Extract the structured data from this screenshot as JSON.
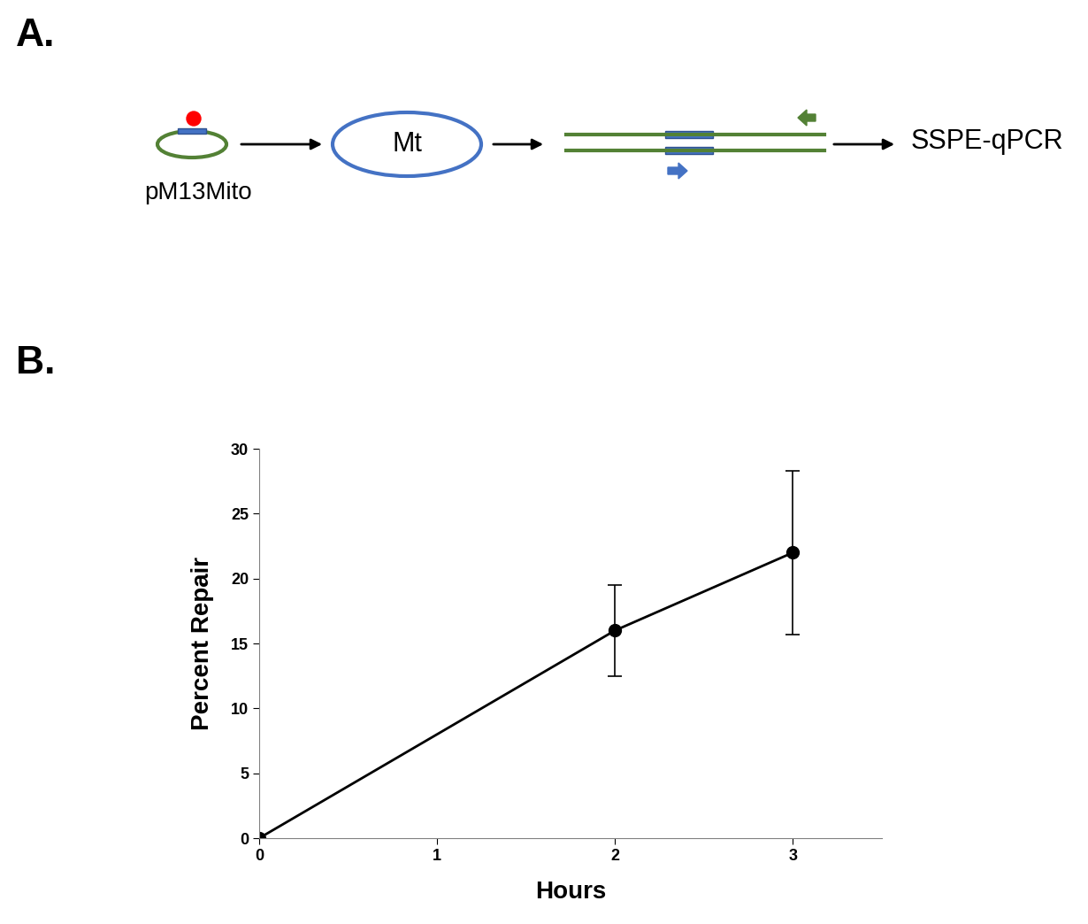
{
  "diagram": {
    "panel_label": "A.",
    "labels": {
      "plasmid": "pM13Mito",
      "organelle": "Mt",
      "assay": "SSPE-qPCR"
    }
  },
  "chart_data": {
    "panel_label": "B.",
    "type": "line",
    "x": [
      0,
      2,
      3
    ],
    "values": [
      0,
      16,
      22
    ],
    "errors": [
      0,
      3.5,
      6.3
    ],
    "color": "#000000",
    "marker": "o",
    "line_style": "solid",
    "xlabel": "Hours",
    "ylabel": "Percent Repair",
    "xlim": [
      0,
      3.5
    ],
    "xticks": [
      0,
      1,
      2,
      3
    ],
    "ylim": [
      0,
      30
    ],
    "yticks": [
      0,
      5,
      10,
      15,
      20,
      25,
      30
    ]
  }
}
